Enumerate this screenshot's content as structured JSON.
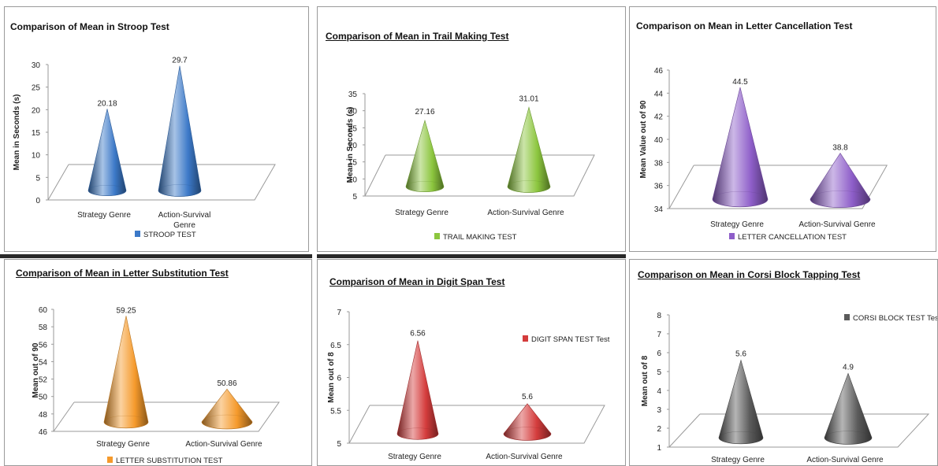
{
  "chart_data": [
    {
      "type": "bar",
      "title": "Comparison of Mean in Stroop Test",
      "categories": [
        "Strategy Genre",
        "Action-Survival Genre"
      ],
      "values": [
        20.18,
        29.7
      ],
      "value_labels": [
        "20.18",
        "29.7"
      ],
      "series": [
        {
          "name": "STROOP TEST",
          "values": [
            20.18,
            29.7
          ]
        }
      ],
      "xlabel": "",
      "ylabel": "Mean in Seconds (s)",
      "ylim": [
        0,
        30
      ],
      "yticks": [
        "0",
        "5",
        "10",
        "15",
        "20",
        "25",
        "30"
      ],
      "legend_position": "bottom",
      "mark_shape": "cone",
      "color": "#3c79c8",
      "grid": false
    },
    {
      "type": "bar",
      "title": "Comparison of Mean in Trail Making Test",
      "categories": [
        "Strategy Genre",
        "Action-Survival Genre"
      ],
      "values": [
        27.16,
        31.01
      ],
      "value_labels": [
        "27.16",
        "31.01"
      ],
      "series": [
        {
          "name": "TRAIL MAKING TEST",
          "values": [
            27.16,
            31.01
          ]
        }
      ],
      "xlabel": "",
      "ylabel": "Mean in Seconds (s)",
      "ylim": [
        5,
        35
      ],
      "yticks": [
        "5",
        "10",
        "15",
        "20",
        "25",
        "30",
        "35"
      ],
      "legend_position": "bottom",
      "mark_shape": "cone",
      "color": "#8cc63e",
      "grid": false
    },
    {
      "type": "bar",
      "title": "Comparison on Mean in Letter Cancellation Test",
      "categories": [
        "Strategy Genre",
        "Action-Survival Genre"
      ],
      "values": [
        44.5,
        38.8
      ],
      "value_labels": [
        "44.5",
        "38.8"
      ],
      "series": [
        {
          "name": "LETTER CANCELLATION TEST",
          "values": [
            44.5,
            38.8
          ]
        }
      ],
      "xlabel": "",
      "ylabel": "Mean Value out of 90",
      "ylim": [
        34,
        46
      ],
      "yticks": [
        "34",
        "36",
        "38",
        "40",
        "42",
        "44",
        "46"
      ],
      "legend_position": "bottom",
      "mark_shape": "cone",
      "color": "#8e5ec9",
      "grid": false
    },
    {
      "type": "bar",
      "title": "Comparison of Mean in Letter Substitution Test",
      "categories": [
        "Strategy Genre",
        "Action-Survival Genre"
      ],
      "values": [
        59.25,
        50.86
      ],
      "value_labels": [
        "59.25",
        "50.86"
      ],
      "series": [
        {
          "name": "LETTER SUBSTITUTION TEST",
          "values": [
            59.25,
            50.86
          ]
        }
      ],
      "xlabel": "",
      "ylabel": "Mean out of 90",
      "ylim": [
        46,
        60
      ],
      "yticks": [
        "46",
        "48",
        "50",
        "52",
        "54",
        "56",
        "58",
        "60"
      ],
      "legend_position": "bottom",
      "mark_shape": "cone",
      "color": "#f59a2c",
      "grid": false
    },
    {
      "type": "bar",
      "title": "Comparison of Mean in Digit Span Test",
      "categories": [
        "Strategy Genre",
        "Action-Survival Genre"
      ],
      "values": [
        6.56,
        5.6
      ],
      "value_labels": [
        "6.56",
        "5.6"
      ],
      "series": [
        {
          "name": "DIGIT SPAN TEST  Test",
          "values": [
            6.56,
            5.6
          ]
        }
      ],
      "xlabel": "",
      "ylabel": "Mean out of 8",
      "ylim": [
        5,
        7
      ],
      "yticks": [
        "5",
        "5.5",
        "6",
        "6.5",
        "7"
      ],
      "legend_position": "top-right",
      "mark_shape": "cone",
      "color": "#d43c3c",
      "grid": false
    },
    {
      "type": "bar",
      "title": "Comparison on Mean in Corsi Block Tapping Test",
      "categories": [
        "Strategy Genre",
        "Action-Survival Genre"
      ],
      "values": [
        5.6,
        4.9
      ],
      "value_labels": [
        "5.6",
        "4.9"
      ],
      "series": [
        {
          "name": "CORSI BLOCK TEST  Test",
          "values": [
            5.6,
            4.9
          ]
        }
      ],
      "xlabel": "",
      "ylabel": "Mean out of 8",
      "ylim": [
        1,
        8
      ],
      "yticks": [
        "1",
        "2",
        "3",
        "4",
        "5",
        "6",
        "7",
        "8"
      ],
      "legend_position": "top-right",
      "mark_shape": "cone",
      "color": "#5b5b5b",
      "grid": false
    }
  ]
}
